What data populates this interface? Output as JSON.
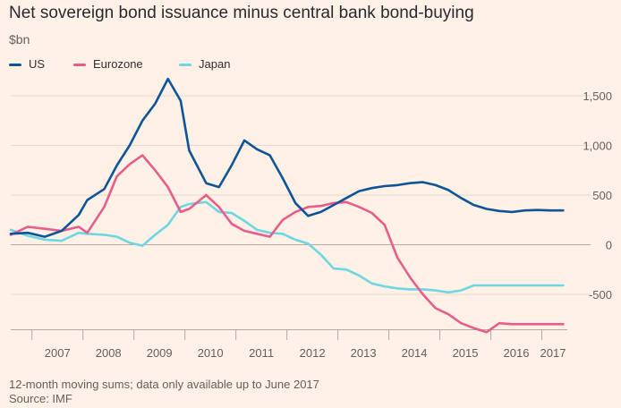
{
  "title": "Net sovereign bond issuance minus central bank bond-buying",
  "unit_label": "$bn",
  "footnote": "12-month moving sums; data only available up to June 2017",
  "source": "Source: IMF",
  "colors": {
    "background": "#fff1e5",
    "grid": "#e6d9ce",
    "zero_line": "#b3a9a0",
    "axis_text": "#66605c",
    "US": "#0f5499",
    "Eurozone": "#e95d8c",
    "Japan": "#6fd6e3"
  },
  "chart_data": {
    "type": "line",
    "title": "Net sovereign bond issuance minus central bank bond-buying",
    "ylabel": "$bn",
    "ylim": [
      -900,
      1750
    ],
    "yticks": [
      1500,
      1000,
      500,
      0,
      -500
    ],
    "ytick_labels": [
      "1,500",
      "1,000",
      "500",
      "0",
      "-500"
    ],
    "xlim": [
      "2006-08",
      "2017-07"
    ],
    "xticks": [
      "2007",
      "2008",
      "2009",
      "2010",
      "2011",
      "2012",
      "2013",
      "2014",
      "2015",
      "2016",
      "2017"
    ],
    "grid": true,
    "legend_position": "top-left",
    "series": [
      {
        "name": "US",
        "x": [
          "2006-08",
          "2006-12",
          "2007-04",
          "2007-08",
          "2007-12",
          "2008-02",
          "2008-06",
          "2008-09",
          "2008-12",
          "2009-03",
          "2009-06",
          "2009-09",
          "2009-12",
          "2010-02",
          "2010-06",
          "2010-09",
          "2010-12",
          "2011-03",
          "2011-06",
          "2011-09",
          "2011-12",
          "2012-03",
          "2012-06",
          "2012-09",
          "2012-12",
          "2013-03",
          "2013-06",
          "2013-09",
          "2013-12",
          "2014-03",
          "2014-06",
          "2014-09",
          "2014-12",
          "2015-03",
          "2015-06",
          "2015-09",
          "2015-12",
          "2016-03",
          "2016-06",
          "2016-09",
          "2016-12",
          "2017-03",
          "2017-06"
        ],
        "values": [
          110,
          120,
          80,
          140,
          300,
          450,
          560,
          800,
          1000,
          1250,
          1420,
          1670,
          1450,
          950,
          620,
          580,
          800,
          1050,
          960,
          900,
          670,
          420,
          290,
          330,
          400,
          470,
          540,
          570,
          590,
          600,
          620,
          630,
          600,
          550,
          470,
          400,
          360,
          340,
          330,
          345,
          350,
          345,
          345
        ]
      },
      {
        "name": "Eurozone",
        "x": [
          "2006-08",
          "2006-12",
          "2007-04",
          "2007-08",
          "2007-12",
          "2008-02",
          "2008-06",
          "2008-09",
          "2008-12",
          "2009-03",
          "2009-06",
          "2009-09",
          "2009-12",
          "2010-02",
          "2010-06",
          "2010-09",
          "2010-12",
          "2011-03",
          "2011-06",
          "2011-09",
          "2011-12",
          "2012-03",
          "2012-06",
          "2012-09",
          "2012-12",
          "2013-03",
          "2013-06",
          "2013-09",
          "2013-12",
          "2014-03",
          "2014-06",
          "2014-09",
          "2014-12",
          "2015-03",
          "2015-06",
          "2015-09",
          "2015-12",
          "2016-03",
          "2016-06",
          "2016-09",
          "2016-12",
          "2017-03",
          "2017-06"
        ],
        "values": [
          100,
          180,
          160,
          140,
          180,
          120,
          380,
          690,
          810,
          900,
          750,
          580,
          330,
          360,
          500,
          380,
          210,
          140,
          110,
          80,
          250,
          330,
          380,
          390,
          420,
          430,
          380,
          320,
          200,
          -130,
          -330,
          -500,
          -640,
          -700,
          -790,
          -840,
          -880,
          -790,
          -800,
          -800,
          -800,
          -800,
          -800
        ]
      },
      {
        "name": "Japan",
        "x": [
          "2006-08",
          "2006-12",
          "2007-04",
          "2007-08",
          "2007-12",
          "2008-02",
          "2008-06",
          "2008-09",
          "2008-12",
          "2009-03",
          "2009-06",
          "2009-09",
          "2009-12",
          "2010-02",
          "2010-06",
          "2010-09",
          "2010-12",
          "2011-03",
          "2011-06",
          "2011-09",
          "2011-12",
          "2012-03",
          "2012-06",
          "2012-09",
          "2012-12",
          "2013-03",
          "2013-06",
          "2013-09",
          "2013-12",
          "2014-03",
          "2014-06",
          "2014-09",
          "2014-12",
          "2015-03",
          "2015-06",
          "2015-09",
          "2015-12",
          "2016-03",
          "2016-06",
          "2016-09",
          "2016-12",
          "2017-03",
          "2017-06"
        ],
        "values": [
          150,
          90,
          50,
          40,
          120,
          110,
          100,
          80,
          20,
          -10,
          100,
          200,
          380,
          410,
          430,
          330,
          320,
          240,
          150,
          120,
          110,
          50,
          10,
          -100,
          -240,
          -250,
          -310,
          -390,
          -420,
          -440,
          -450,
          -450,
          -460,
          -480,
          -460,
          -410,
          -410,
          -410,
          -410,
          -410,
          -410,
          -410,
          -410
        ]
      }
    ]
  }
}
